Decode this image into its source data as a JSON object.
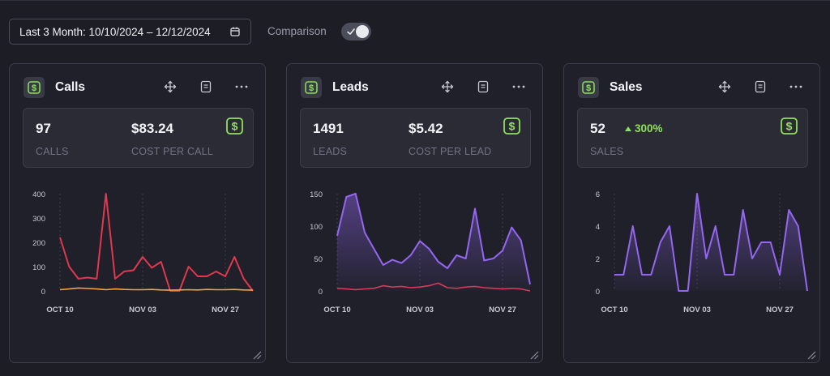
{
  "filters": {
    "date_range": "Last 3 Month: 10/10/2024 – 12/12/2024",
    "comparison_label": "Comparison",
    "comparison_enabled": true
  },
  "colors": {
    "calls": "#e0384f",
    "calls_compare": "#f5a33c",
    "leads": "#9467f0",
    "leads_compare": "#d63a5a",
    "sales": "#9467f0",
    "badge": "#8ee25a"
  },
  "cards": [
    {
      "title": "Calls",
      "icon": "dollar-icon",
      "stats": [
        {
          "value": "97",
          "label": "CALLS"
        },
        {
          "value": "$83.24",
          "label": "COST PER CALL"
        }
      ]
    },
    {
      "title": "Leads",
      "icon": "dollar-icon",
      "stats": [
        {
          "value": "1491",
          "label": "LEADS"
        },
        {
          "value": "$5.42",
          "label": "COST PER LEAD"
        }
      ]
    },
    {
      "title": "Sales",
      "icon": "dollar-icon",
      "stats": [
        {
          "value": "52",
          "label": "SALES"
        }
      ],
      "change": "300%"
    }
  ],
  "chart_data": [
    {
      "type": "line",
      "x_ticks": [
        "OCT 10",
        "NOV 03",
        "NOV 27"
      ],
      "ylim": [
        0,
        400
      ],
      "y_ticks": [
        0,
        100,
        200,
        300,
        400
      ],
      "grid": "vertical dashed",
      "series": [
        {
          "values": [
            220,
            100,
            50,
            55,
            50,
            400,
            50,
            80,
            85,
            140,
            95,
            120,
            0,
            0,
            100,
            60,
            60,
            80,
            60,
            140,
            50,
            0
          ]
        },
        {
          "values": [
            5,
            8,
            12,
            10,
            8,
            5,
            8,
            6,
            5,
            5,
            6,
            4,
            3,
            4,
            5,
            4,
            6,
            5,
            5,
            6,
            4,
            3
          ]
        }
      ]
    },
    {
      "type": "area",
      "x_ticks": [
        "OCT 10",
        "NOV 03",
        "NOV 27"
      ],
      "ylim": [
        0,
        150
      ],
      "y_ticks": [
        0,
        50,
        100,
        150
      ],
      "grid": "vertical dashed",
      "series": [
        {
          "values": [
            85,
            145,
            150,
            90,
            65,
            40,
            48,
            43,
            55,
            77,
            65,
            45,
            35,
            55,
            50,
            127,
            47,
            50,
            62,
            98,
            78,
            10
          ]
        },
        {
          "values": [
            4,
            3,
            2,
            3,
            4,
            8,
            6,
            7,
            5,
            6,
            8,
            12,
            5,
            4,
            6,
            7,
            5,
            4,
            3,
            4,
            3,
            0
          ]
        }
      ]
    },
    {
      "type": "area",
      "x_ticks": [
        "OCT 10",
        "NOV 03",
        "NOV 27"
      ],
      "ylim": [
        0,
        6
      ],
      "y_ticks": [
        0,
        2,
        4,
        6
      ],
      "grid": "vertical dashed",
      "series": [
        {
          "values": [
            1,
            1,
            4,
            1,
            1,
            3,
            4,
            0,
            0,
            6,
            2,
            4,
            1,
            1,
            5,
            2,
            3,
            3,
            1,
            5,
            4,
            0
          ]
        }
      ]
    }
  ]
}
